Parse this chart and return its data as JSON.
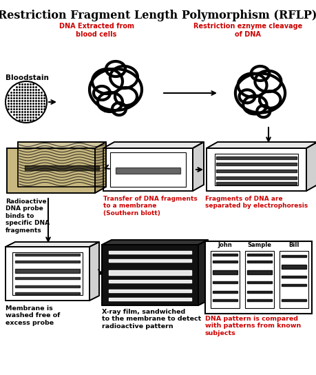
{
  "title": "Restriction Fragment Length Polymorphism (RFLP)",
  "title_fontsize": 11.5,
  "title_fontweight": "bold",
  "bg_color": "#ffffff",
  "red_color": "#cc0000",
  "black_color": "#000000",
  "labels": {
    "bloodstain": "Bloodstain",
    "dna_extracted": "DNA Extracted from\nblood cells",
    "restriction": "Restriction eznyme cleavage\nof DNA",
    "radioactive": "Radioactive\nDNA probe\nbinds to\nspecific DNA\nfragments",
    "transfer": "Transfer of DNA fragments\nto a membrane\n(Southern blott)",
    "fragments": "Fragments of DNA are\nseparated by electrophoresis",
    "membrane_washed": "Membrane is\nwashed free of\nexcess probe",
    "xray": "X-ray film, sandwiched\nto the membrane to detect\nradioactive pattern",
    "dna_pattern": "DNA pattern is compared\nwith patterns from known\nsubjects",
    "john": "John",
    "sample": "Sample",
    "bill": "Bill"
  },
  "figsize": [
    4.59,
    5.44
  ],
  "dpi": 100
}
